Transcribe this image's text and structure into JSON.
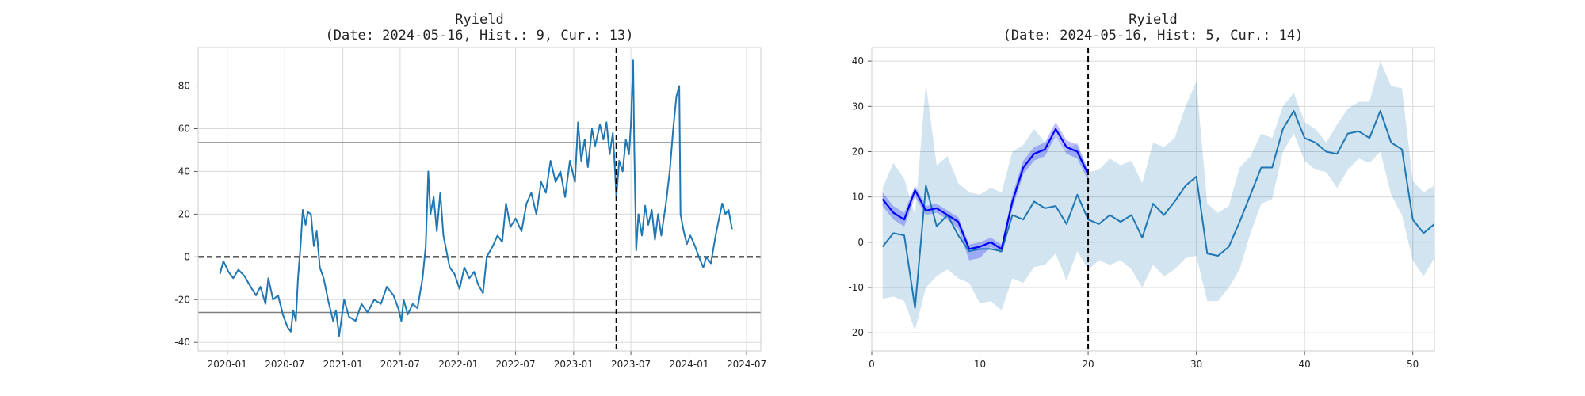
{
  "chart_data": [
    {
      "type": "line",
      "title": "Ryield",
      "subtitle": "(Date: 2024-05-16, Hist.: 9, Cur.: 13)",
      "x_is_date": true,
      "xlim": [
        "2019-10-01",
        "2024-08-15"
      ],
      "ylim": [
        -44,
        98
      ],
      "xticks": [
        "2020-01-01",
        "2020-07-01",
        "2021-01-01",
        "2021-07-01",
        "2022-01-01",
        "2022-07-01",
        "2023-01-01",
        "2023-07-01",
        "2024-01-01",
        "2024-07-01"
      ],
      "xtick_labels": [
        "2020-01",
        "2020-07",
        "2021-01",
        "2021-07",
        "2022-01",
        "2022-07",
        "2023-01",
        "2023-07",
        "2024-01",
        "2024-07"
      ],
      "yticks": [
        -40,
        -20,
        0,
        20,
        40,
        60,
        80
      ],
      "grid": true,
      "hlines": [
        {
          "y": 53.5,
          "style": "solid",
          "color": "#808080"
        },
        {
          "y": 0,
          "style": "dashed",
          "color": "#000000"
        },
        {
          "y": -26,
          "style": "solid",
          "color": "#808080"
        }
      ],
      "vlines": [
        {
          "x": "2023-05-16",
          "style": "dashed",
          "color": "#000000"
        }
      ],
      "series": [
        {
          "color": "#1f77b4",
          "points": [
            [
              "2019-12-09",
              -8
            ],
            [
              "2019-12-20",
              -2
            ],
            [
              "2020-01-05",
              -7
            ],
            [
              "2020-01-20",
              -10
            ],
            [
              "2020-02-05",
              -6
            ],
            [
              "2020-02-25",
              -9
            ],
            [
              "2020-03-15",
              -14
            ],
            [
              "2020-04-01",
              -18
            ],
            [
              "2020-04-15",
              -14
            ],
            [
              "2020-05-01",
              -22
            ],
            [
              "2020-05-10",
              -10
            ],
            [
              "2020-05-25",
              -20
            ],
            [
              "2020-06-10",
              -18
            ],
            [
              "2020-06-25",
              -27
            ],
            [
              "2020-07-10",
              -33
            ],
            [
              "2020-07-20",
              -35
            ],
            [
              "2020-07-28",
              -25
            ],
            [
              "2020-08-05",
              -30
            ],
            [
              "2020-08-12",
              -10
            ],
            [
              "2020-08-20",
              5
            ],
            [
              "2020-08-27",
              22
            ],
            [
              "2020-09-05",
              15
            ],
            [
              "2020-09-12",
              21
            ],
            [
              "2020-09-22",
              20
            ],
            [
              "2020-10-01",
              5
            ],
            [
              "2020-10-10",
              12
            ],
            [
              "2020-10-20",
              -5
            ],
            [
              "2020-11-01",
              -10
            ],
            [
              "2020-11-15",
              -20
            ],
            [
              "2020-12-01",
              -30
            ],
            [
              "2020-12-10",
              -25
            ],
            [
              "2020-12-20",
              -37
            ],
            [
              "2021-01-05",
              -20
            ],
            [
              "2021-01-20",
              -28
            ],
            [
              "2021-02-10",
              -30
            ],
            [
              "2021-03-01",
              -22
            ],
            [
              "2021-03-20",
              -26
            ],
            [
              "2021-04-10",
              -20
            ],
            [
              "2021-05-01",
              -22
            ],
            [
              "2021-05-20",
              -14
            ],
            [
              "2021-06-10",
              -18
            ],
            [
              "2021-06-25",
              -24
            ],
            [
              "2021-07-05",
              -30
            ],
            [
              "2021-07-12",
              -20
            ],
            [
              "2021-07-25",
              -27
            ],
            [
              "2021-08-10",
              -22
            ],
            [
              "2021-08-25",
              -24
            ],
            [
              "2021-09-10",
              -10
            ],
            [
              "2021-09-20",
              5
            ],
            [
              "2021-09-28",
              40
            ],
            [
              "2021-10-05",
              20
            ],
            [
              "2021-10-15",
              28
            ],
            [
              "2021-10-25",
              12
            ],
            [
              "2021-11-05",
              30
            ],
            [
              "2021-11-15",
              10
            ],
            [
              "2021-12-05",
              -5
            ],
            [
              "2021-12-20",
              -8
            ],
            [
              "2022-01-05",
              -15
            ],
            [
              "2022-01-20",
              -5
            ],
            [
              "2022-02-05",
              -10
            ],
            [
              "2022-02-20",
              -7
            ],
            [
              "2022-03-05",
              -13
            ],
            [
              "2022-03-20",
              -17
            ],
            [
              "2022-04-01",
              0
            ],
            [
              "2022-04-20",
              5
            ],
            [
              "2022-05-05",
              10
            ],
            [
              "2022-05-20",
              7
            ],
            [
              "2022-06-01",
              25
            ],
            [
              "2022-06-15",
              14
            ],
            [
              "2022-07-01",
              18
            ],
            [
              "2022-07-20",
              12
            ],
            [
              "2022-08-05",
              25
            ],
            [
              "2022-08-20",
              30
            ],
            [
              "2022-09-05",
              20
            ],
            [
              "2022-09-20",
              35
            ],
            [
              "2022-10-05",
              30
            ],
            [
              "2022-10-20",
              45
            ],
            [
              "2022-11-05",
              35
            ],
            [
              "2022-11-20",
              40
            ],
            [
              "2022-12-05",
              28
            ],
            [
              "2022-12-20",
              45
            ],
            [
              "2023-01-05",
              35
            ],
            [
              "2023-01-15",
              63
            ],
            [
              "2023-01-25",
              45
            ],
            [
              "2023-02-05",
              55
            ],
            [
              "2023-02-15",
              42
            ],
            [
              "2023-02-28",
              60
            ],
            [
              "2023-03-10",
              52
            ],
            [
              "2023-03-25",
              62
            ],
            [
              "2023-04-05",
              55
            ],
            [
              "2023-04-15",
              63
            ],
            [
              "2023-04-25",
              48
            ],
            [
              "2023-05-05",
              58
            ],
            [
              "2023-05-12",
              40
            ],
            [
              "2023-05-16",
              28
            ],
            [
              "2023-05-25",
              45
            ],
            [
              "2023-06-05",
              40
            ],
            [
              "2023-06-15",
              55
            ],
            [
              "2023-06-25",
              48
            ],
            [
              "2023-07-01",
              62
            ],
            [
              "2023-07-08",
              92
            ],
            [
              "2023-07-12",
              50
            ],
            [
              "2023-07-18",
              3
            ],
            [
              "2023-07-25",
              20
            ],
            [
              "2023-08-05",
              10
            ],
            [
              "2023-08-15",
              24
            ],
            [
              "2023-08-25",
              15
            ],
            [
              "2023-09-05",
              22
            ],
            [
              "2023-09-15",
              8
            ],
            [
              "2023-09-25",
              20
            ],
            [
              "2023-10-05",
              10
            ],
            [
              "2023-10-20",
              25
            ],
            [
              "2023-11-01",
              40
            ],
            [
              "2023-11-12",
              60
            ],
            [
              "2023-11-22",
              75
            ],
            [
              "2023-12-01",
              80
            ],
            [
              "2023-12-05",
              20
            ],
            [
              "2023-12-15",
              12
            ],
            [
              "2023-12-25",
              6
            ],
            [
              "2024-01-05",
              10
            ],
            [
              "2024-01-20",
              5
            ],
            [
              "2024-02-01",
              0
            ],
            [
              "2024-02-15",
              -5
            ],
            [
              "2024-02-25",
              0
            ],
            [
              "2024-03-10",
              -3
            ],
            [
              "2024-03-25",
              10
            ],
            [
              "2024-04-05",
              18
            ],
            [
              "2024-04-15",
              25
            ],
            [
              "2024-04-25",
              20
            ],
            [
              "2024-05-05",
              22
            ],
            [
              "2024-05-16",
              13
            ]
          ]
        }
      ]
    },
    {
      "type": "line",
      "title": "Ryield",
      "subtitle": "(Date: 2024-05-16, Hist: 5, Cur.: 14)",
      "xlim": [
        0,
        52
      ],
      "ylim": [
        -24,
        43
      ],
      "xticks": [
        0,
        10,
        20,
        30,
        40,
        50
      ],
      "yticks": [
        -20,
        -10,
        0,
        10,
        20,
        30,
        40
      ],
      "grid": true,
      "vlines": [
        {
          "x": 20,
          "style": "dashed",
          "color": "#000000"
        }
      ],
      "series": [
        {
          "color": "#1f77b4",
          "band_color": "#1f77b4",
          "x": [
            1,
            2,
            3,
            4,
            5,
            6,
            7,
            8,
            9,
            10,
            11,
            12,
            13,
            14,
            15,
            16,
            17,
            18,
            19,
            20,
            21,
            22,
            23,
            24,
            25,
            26,
            27,
            28,
            29,
            30,
            31,
            32,
            33,
            34,
            35,
            36,
            37,
            38,
            39,
            40,
            41,
            42,
            43,
            44,
            45,
            46,
            47,
            48,
            49,
            50,
            51,
            52
          ],
          "y": [
            -1,
            2,
            1.5,
            -14.5,
            12.5,
            3.5,
            6,
            1.5,
            -2,
            -1.5,
            -1.5,
            -2,
            6,
            5,
            9,
            7.5,
            8,
            4,
            10.5,
            5,
            4,
            6,
            4.5,
            6,
            1,
            8.5,
            6,
            9,
            12.5,
            14.5,
            -2.5,
            -3,
            -1,
            4.5,
            10.5,
            16.5,
            16.5,
            25,
            29,
            23,
            22,
            20,
            19.5,
            24,
            24.5,
            23,
            29,
            22,
            20.5,
            5,
            2,
            4
          ],
          "upper": [
            12,
            17.5,
            14,
            6,
            35,
            17,
            19,
            13,
            11,
            10.5,
            12,
            11,
            20,
            21.5,
            25,
            22,
            23.5,
            20,
            22,
            15.5,
            16,
            18.5,
            17,
            18,
            13,
            22,
            21,
            23,
            30,
            35.5,
            8.5,
            6.5,
            8,
            16.5,
            19,
            24,
            23,
            30,
            33,
            26.5,
            25,
            22,
            26,
            29.5,
            31,
            31,
            40,
            34.5,
            34,
            13.5,
            11,
            12.5
          ],
          "lower": [
            -12.5,
            -12,
            -13,
            -19.5,
            -10,
            -7.5,
            -6,
            -8,
            -9,
            -13.5,
            -13,
            -15,
            -8,
            -9,
            -5.5,
            -5,
            -2.5,
            -8.5,
            -2,
            -6,
            -4,
            -5,
            -4,
            -6,
            -10,
            -5,
            -7.5,
            -6,
            -3.5,
            -3,
            -13,
            -13,
            -10,
            -6,
            2,
            8.5,
            9.5,
            20,
            24,
            18,
            16,
            15.5,
            12,
            16,
            18.5,
            17.5,
            20,
            10.5,
            6,
            -4,
            -7.5,
            -3.5
          ]
        },
        {
          "color": "#0000ff",
          "band_color": "#0000ff",
          "x": [
            1,
            2,
            3,
            4,
            5,
            6,
            7,
            8,
            9,
            10,
            11,
            12,
            13,
            14,
            15,
            16,
            17,
            18,
            19,
            20
          ],
          "y": [
            9.5,
            6.5,
            5,
            11.5,
            7,
            7.5,
            6,
            4.5,
            -1.5,
            -1,
            0,
            -1.5,
            9,
            16.5,
            19.5,
            20.5,
            25,
            21,
            20,
            15
          ],
          "upper": [
            11,
            8,
            6.5,
            12.5,
            8,
            8.5,
            7,
            5.5,
            -0.5,
            0,
            1,
            -0.5,
            10.5,
            18,
            21,
            22,
            26.5,
            22.5,
            21.5,
            16
          ],
          "lower": [
            8,
            5,
            3.5,
            10,
            6,
            6.5,
            5,
            3,
            -4,
            -3.5,
            -1,
            -2.5,
            7.5,
            15,
            18,
            19,
            23.5,
            19.5,
            18.5,
            13.5
          ]
        }
      ]
    }
  ]
}
